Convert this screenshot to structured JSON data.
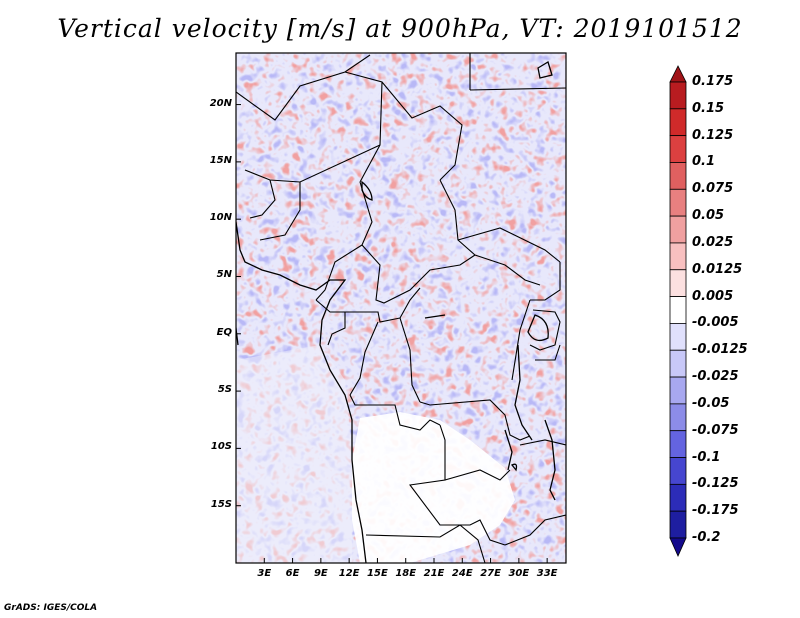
{
  "title": "Vertical velocity [m/s] at 900hPa, VT: 2019101512",
  "credit": "GrADS: IGES/COLA",
  "map": {
    "lat_labels": [
      "20N",
      "15N",
      "10N",
      "5N",
      "EQ",
      "5S",
      "10S",
      "15S"
    ],
    "lat_values": [
      20,
      15,
      10,
      5,
      0,
      -5,
      -10,
      -15
    ],
    "lon_labels": [
      "3E",
      "6E",
      "9E",
      "12E",
      "15E",
      "18E",
      "21E",
      "24E",
      "27E",
      "30E",
      "33E"
    ],
    "lon_values": [
      3,
      6,
      9,
      12,
      15,
      18,
      21,
      24,
      27,
      30,
      33
    ],
    "lon_range": [
      0,
      35
    ],
    "lat_range": [
      -20,
      24.5
    ]
  },
  "colorbar": {
    "labels": [
      "0.175",
      "0.15",
      "0.125",
      "0.1",
      "0.075",
      "0.05",
      "0.025",
      "0.0125",
      "0.005",
      "-0.005",
      "-0.0125",
      "-0.025",
      "-0.05",
      "-0.075",
      "-0.1",
      "-0.125",
      "-0.175",
      "-0.2"
    ],
    "colors": [
      "#a01418",
      "#b81c20",
      "#d02a2a",
      "#dc4040",
      "#e06060",
      "#e88080",
      "#f0a0a0",
      "#f8c0c0",
      "#fce0e0",
      "#ffffff",
      "#e0e0fc",
      "#c8c8f8",
      "#a8a8f0",
      "#8c8ce8",
      "#6464e0",
      "#4646d0",
      "#2c2cb8",
      "#1e1ea0",
      "#140a8c"
    ]
  }
}
